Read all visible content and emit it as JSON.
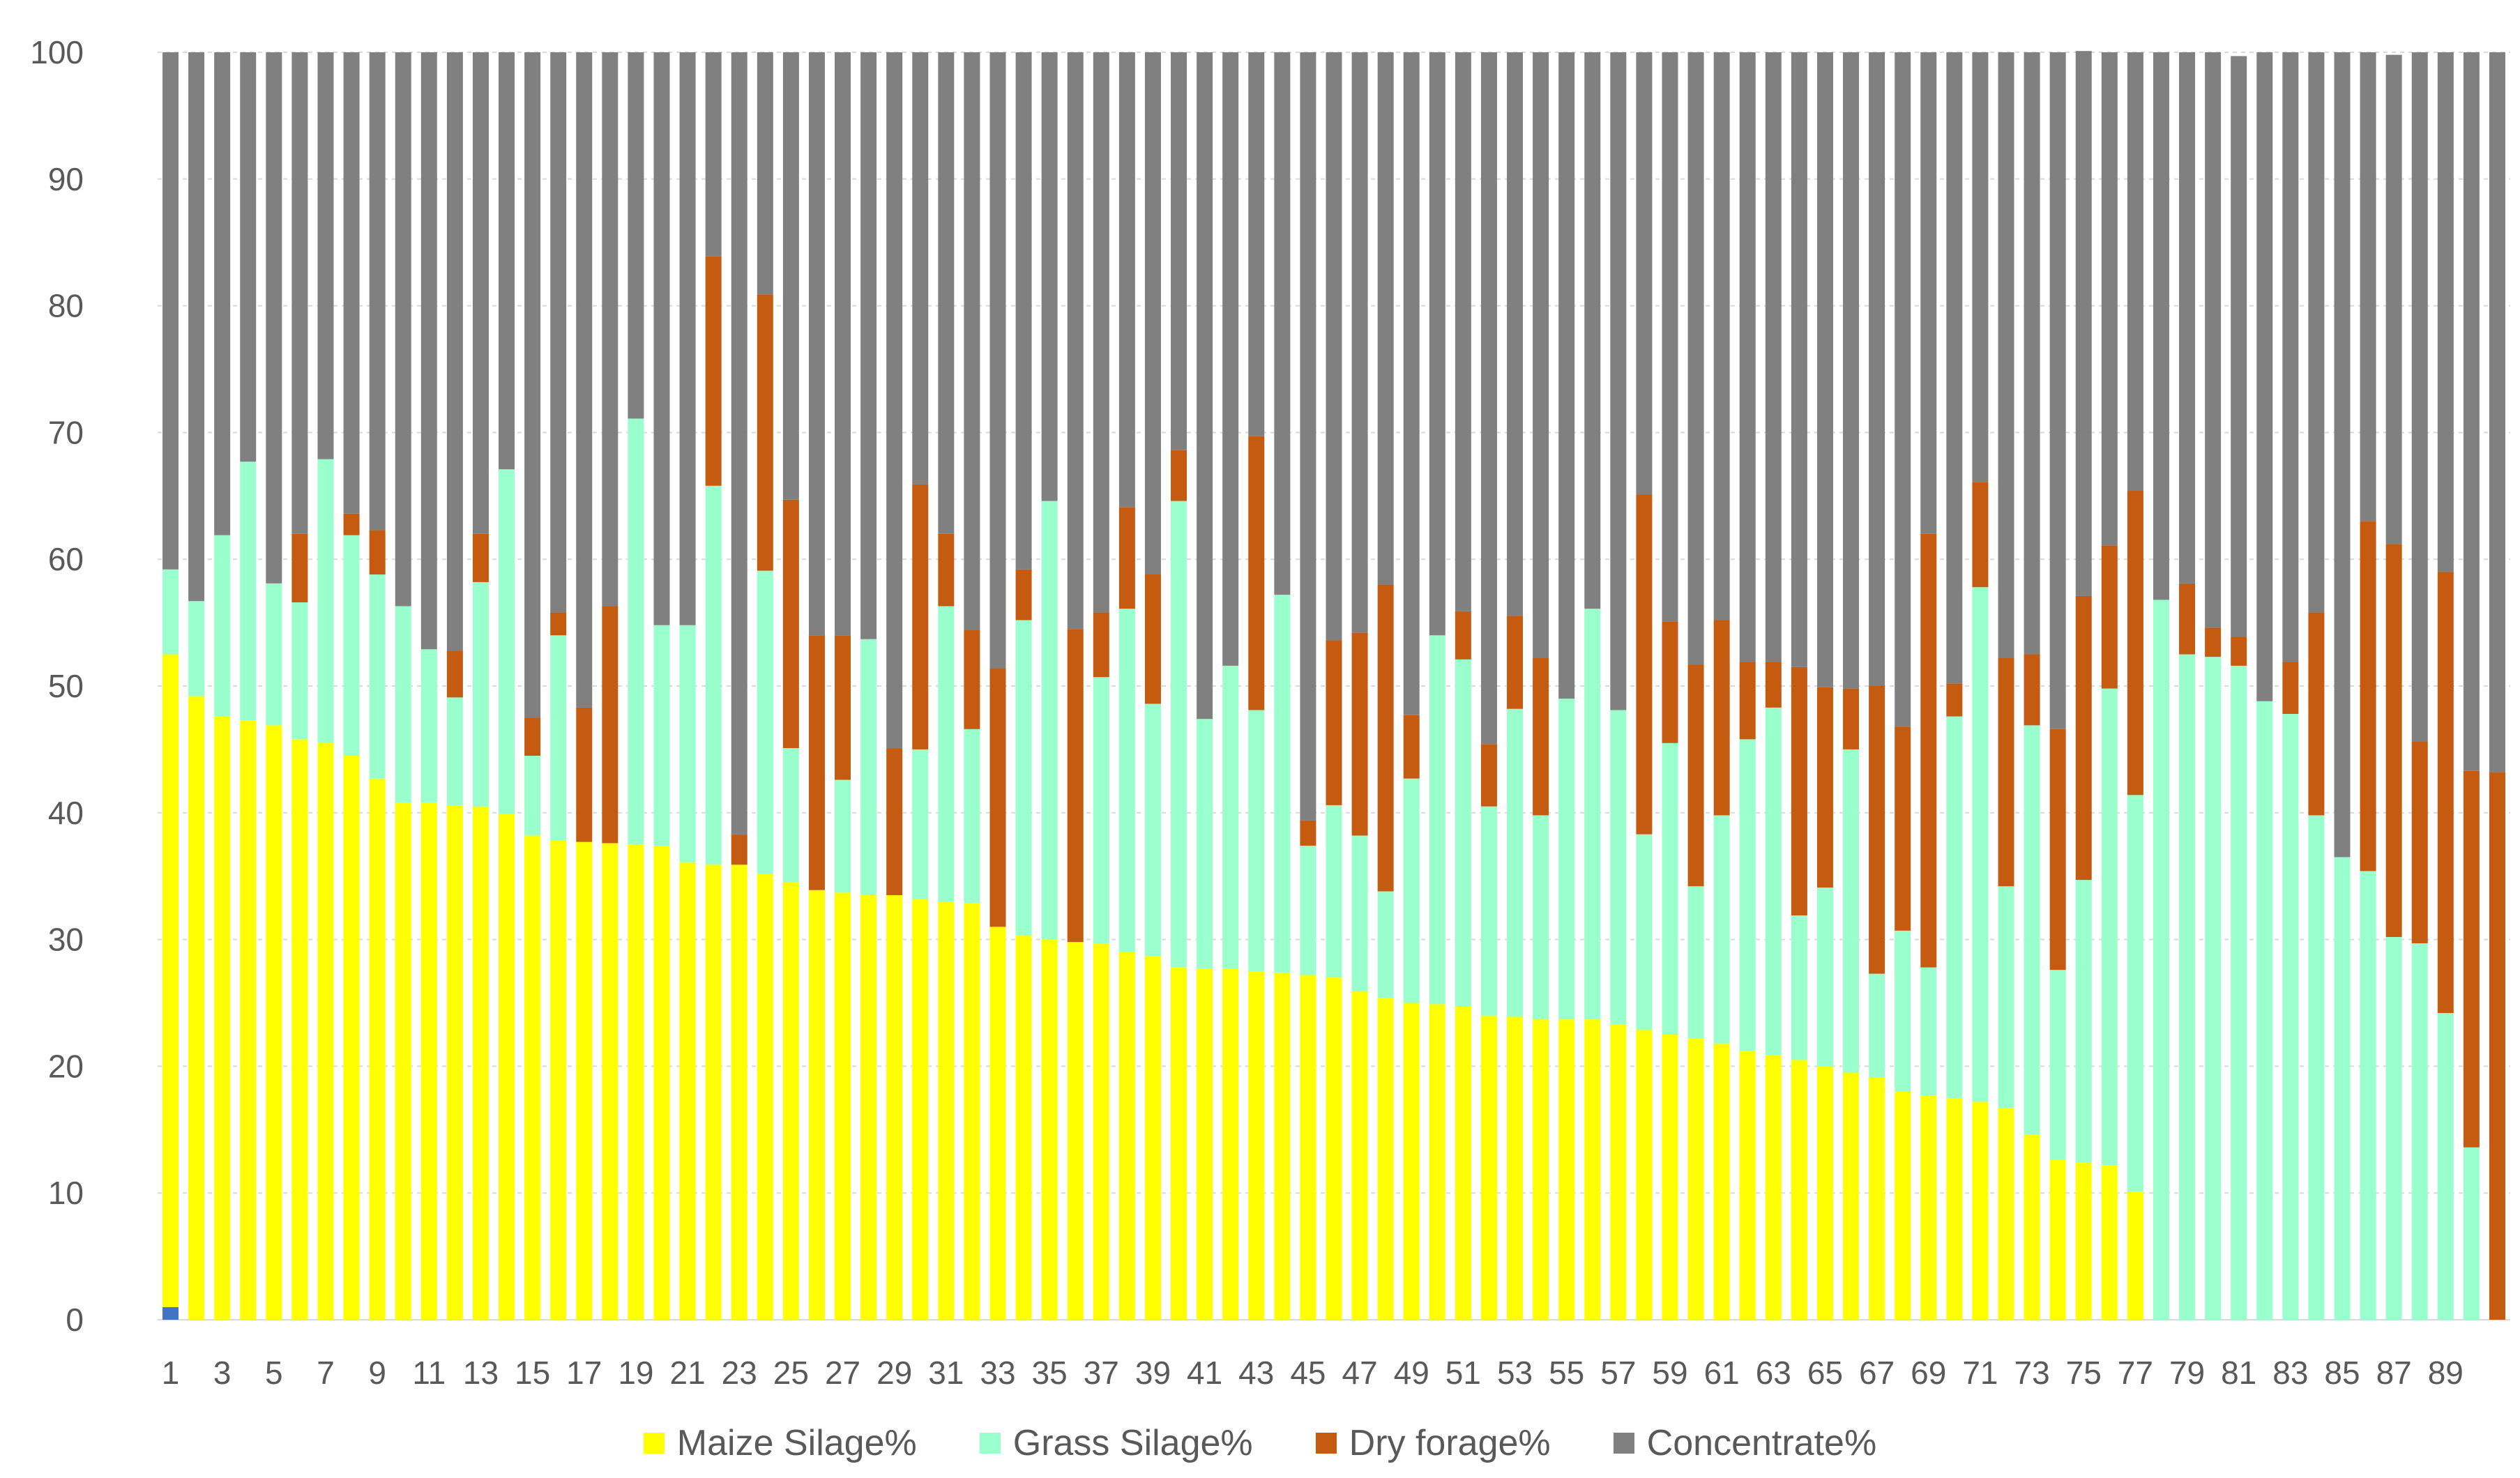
{
  "chart_data": {
    "type": "bar",
    "stacked": true,
    "title": "",
    "xlabel": "",
    "ylabel": "",
    "ylim": [
      0,
      100
    ],
    "yticks": [
      0,
      10,
      20,
      30,
      40,
      50,
      60,
      70,
      80,
      90,
      100
    ],
    "categories": [
      "1",
      "2",
      "3",
      "4",
      "5",
      "6",
      "7",
      "8",
      "9",
      "10",
      "11",
      "12",
      "13",
      "14",
      "15",
      "16",
      "17",
      "18",
      "19",
      "20",
      "21",
      "22",
      "23",
      "24",
      "25",
      "26",
      "27",
      "28",
      "29",
      "30",
      "31",
      "32",
      "33",
      "34",
      "35",
      "36",
      "37",
      "38",
      "39",
      "40",
      "41",
      "42",
      "43",
      "44",
      "45",
      "46",
      "47",
      "48",
      "49",
      "50",
      "51",
      "52",
      "53",
      "54",
      "55",
      "56",
      "57",
      "58",
      "59",
      "60",
      "61",
      "62",
      "63",
      "64",
      "65",
      "66",
      "67",
      "68",
      "69",
      "70",
      "71",
      "72",
      "73",
      "74",
      "75",
      "76",
      "77",
      "78",
      "79",
      "80",
      "81",
      "82",
      "83",
      "84",
      "85",
      "86",
      "87",
      "88",
      "89",
      "90",
      "91"
    ],
    "xtick_labels_shown": [
      "1",
      "3",
      "5",
      "7",
      "9",
      "11",
      "13",
      "15",
      "17",
      "19",
      "21",
      "23",
      "25",
      "27",
      "29",
      "31",
      "33",
      "35",
      "37",
      "39",
      "41",
      "43",
      "45",
      "47",
      "49",
      "51",
      "53",
      "55",
      "57",
      "59",
      "61",
      "63",
      "65",
      "67",
      "69",
      "71",
      "73",
      "75",
      "77",
      "79",
      "81",
      "83",
      "85",
      "87",
      "89"
    ],
    "grid": "horizontal",
    "legend_position": "bottom",
    "series": [
      {
        "name": "",
        "color": "#4472C4",
        "values": [
          1,
          0,
          0,
          0,
          0,
          0,
          0,
          0,
          0,
          0,
          0,
          0,
          0,
          0,
          0,
          0,
          0,
          0,
          0,
          0,
          0,
          0,
          0,
          0,
          0,
          0,
          0,
          0,
          0,
          0,
          0,
          0,
          0,
          0,
          0,
          0,
          0,
          0,
          0,
          0,
          0,
          0,
          0,
          0,
          0,
          0,
          0,
          0,
          0,
          0,
          0,
          0,
          0,
          0,
          0,
          0,
          0,
          0,
          0,
          0,
          0,
          0,
          0,
          0,
          0,
          0,
          0,
          0,
          0,
          0,
          0,
          0,
          0,
          0,
          0,
          0,
          0,
          0,
          0,
          0,
          0,
          0,
          0,
          0,
          0,
          0,
          0,
          0,
          0,
          0,
          0
        ]
      },
      {
        "name": "Maize Silage%",
        "color": "#FFFF00",
        "values": [
          51.5,
          49.2,
          47.6,
          47.3,
          46.9,
          45.8,
          45.5,
          44.5,
          42.7,
          40.8,
          40.8,
          40.6,
          40.5,
          39.9,
          38.2,
          37.8,
          37.7,
          37.6,
          37.5,
          37.4,
          36.1,
          35.9,
          35.9,
          35.2,
          34.5,
          33.9,
          33.7,
          33.5,
          33.5,
          33.2,
          33.0,
          32.9,
          31.0,
          30.3,
          30.0,
          29.8,
          29.7,
          29.0,
          28.7,
          27.8,
          27.7,
          27.7,
          27.5,
          27.4,
          27.2,
          27.0,
          25.9,
          25.4,
          25.0,
          24.9,
          24.7,
          24.0,
          23.9,
          23.7,
          23.7,
          23.7,
          23.3,
          22.9,
          22.5,
          22.2,
          21.8,
          21.2,
          20.9,
          20.5,
          20.0,
          19.5,
          19.1,
          18.0,
          17.7,
          17.5,
          17.2,
          16.7,
          14.6,
          12.6,
          12.4,
          12.2,
          10.1,
          0,
          0,
          0,
          0,
          0,
          0,
          0,
          0,
          0,
          0,
          0,
          0,
          0,
          0
        ]
      },
      {
        "name": "Grass Silage%",
        "color": "#99FFCC",
        "values": [
          6.7,
          7.5,
          14.3,
          20.4,
          11.2,
          10.8,
          22.4,
          17.4,
          16.1,
          15.5,
          12.1,
          8.5,
          17.7,
          27.2,
          6.3,
          16.2,
          0,
          0,
          33.6,
          17.4,
          18.7,
          29.9,
          0,
          23.9,
          10.6,
          0,
          8.9,
          20.2,
          0,
          11.8,
          23.3,
          13.7,
          0,
          24.9,
          34.6,
          0,
          21.0,
          27.1,
          19.9,
          36.8,
          19.7,
          23.9,
          20.6,
          29.8,
          10.2,
          13.6,
          12.3,
          8.4,
          17.7,
          29.1,
          27.4,
          16.5,
          24.3,
          16.1,
          25.3,
          32.4,
          24.8,
          15.4,
          23.0,
          12.0,
          18.0,
          24.6,
          27.4,
          11.4,
          14.1,
          25.5,
          8.2,
          12.7,
          10.1,
          30.1,
          40.6,
          17.5,
          32.3,
          15.0,
          22.3,
          37.6,
          31.3,
          56.8,
          52.5,
          52.3,
          51.6,
          48.8,
          47.8,
          39.8,
          36.5,
          35.4,
          30.2,
          29.7,
          24.2,
          13.6,
          0
        ]
      },
      {
        "name": "Dry forage%",
        "color": "#C55A11",
        "values": [
          0,
          0,
          0,
          0,
          0,
          5.4,
          0,
          1.7,
          3.5,
          0,
          0,
          3.7,
          3.8,
          0,
          3.0,
          1.8,
          10.6,
          18.7,
          0,
          0,
          0,
          18.1,
          2.4,
          21.8,
          19.6,
          20.1,
          11.4,
          0,
          11.6,
          20.9,
          5.7,
          7.8,
          20.4,
          4.0,
          0,
          24.7,
          5.1,
          8.0,
          10.2,
          4.0,
          0,
          0,
          21.6,
          0,
          2.0,
          13.0,
          16.0,
          24.2,
          5.0,
          0,
          3.8,
          4.9,
          7.3,
          12.4,
          0,
          0,
          0,
          26.8,
          9.6,
          17.5,
          15.4,
          6.1,
          3.6,
          19.6,
          15.8,
          4.8,
          22.7,
          16.1,
          34.2,
          2.6,
          8.3,
          18.0,
          5.6,
          19.0,
          22.4,
          11.3,
          24.0,
          0,
          5.6,
          2.3,
          2.3,
          0,
          4.1,
          16.0,
          0,
          27.6,
          31.0,
          15.9,
          34.8,
          29.7,
          43.2
        ]
      },
      {
        "name": "Concentrate%",
        "color": "#808080",
        "values": [
          40.8,
          43.3,
          38.1,
          32.3,
          41.9,
          38.0,
          32.1,
          36.4,
          37.7,
          43.7,
          47.1,
          47.2,
          38.0,
          32.9,
          52.5,
          44.2,
          51.7,
          43.7,
          28.9,
          45.2,
          45.2,
          16.1,
          61.7,
          19.1,
          35.3,
          46.0,
          46.0,
          46.3,
          54.9,
          34.1,
          38.0,
          45.6,
          48.6,
          40.8,
          35.4,
          45.5,
          44.2,
          35.9,
          41.2,
          31.4,
          52.6,
          48.4,
          30.3,
          42.8,
          60.6,
          46.4,
          45.8,
          42.0,
          52.3,
          46.0,
          44.1,
          54.6,
          44.5,
          47.8,
          51.0,
          43.9,
          51.9,
          34.9,
          44.9,
          48.3,
          44.8,
          48.1,
          48.1,
          48.5,
          50.1,
          50.2,
          50.0,
          53.2,
          38.0,
          49.8,
          33.9,
          47.8,
          47.5,
          53.4,
          43.0,
          38.9,
          34.6,
          43.2,
          41.9,
          45.4,
          45.8,
          51.2,
          48.1,
          44.2,
          63.5,
          37.0,
          38.6,
          54.4,
          41.0,
          56.7,
          56.8
        ]
      }
    ]
  }
}
